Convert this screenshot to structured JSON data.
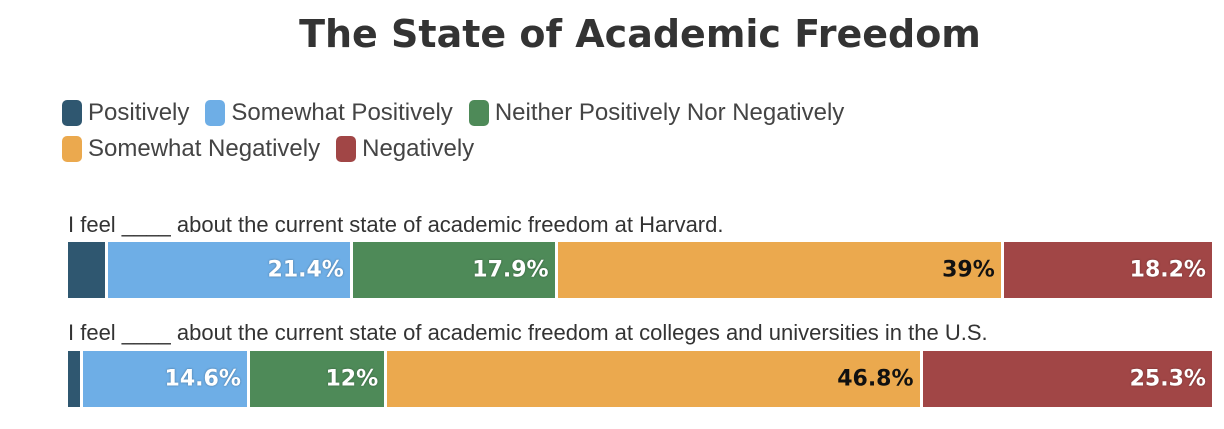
{
  "chart_data": {
    "type": "bar",
    "orientation": "horizontal-stacked-100",
    "title": "The State of Academic Freedom",
    "legend": [
      {
        "name": "Positively",
        "color": "#2f5770"
      },
      {
        "name": "Somewhat Positively",
        "color": "#6eaee6"
      },
      {
        "name": "Neither Positively Nor Negatively",
        "color": "#4e8a58"
      },
      {
        "name": "Somewhat Negatively",
        "color": "#eba94e"
      },
      {
        "name": "Negatively",
        "color": "#a14646"
      }
    ],
    "categories": [
      "I feel ____ about the current state of academic freedom at Harvard.",
      "I feel ____ about the current state of academic freedom at colleges and universities in the U.S."
    ],
    "series": [
      {
        "name": "Positively",
        "values": [
          3.5,
          1.3
        ],
        "labels": [
          "",
          ""
        ]
      },
      {
        "name": "Somewhat Positively",
        "values": [
          21.4,
          14.6
        ],
        "labels": [
          "21.4%",
          "14.6%"
        ]
      },
      {
        "name": "Neither Positively Nor Negatively",
        "values": [
          17.9,
          12
        ],
        "labels": [
          "17.9%",
          "12%"
        ]
      },
      {
        "name": "Somewhat Negatively",
        "values": [
          39,
          46.8
        ],
        "labels": [
          "39%",
          "46.8%"
        ]
      },
      {
        "name": "Negatively",
        "values": [
          18.2,
          25.3
        ],
        "labels": [
          "18.2%",
          "25.3%"
        ]
      }
    ],
    "xlim": [
      0,
      100
    ],
    "xlabel": "",
    "ylabel": ""
  }
}
